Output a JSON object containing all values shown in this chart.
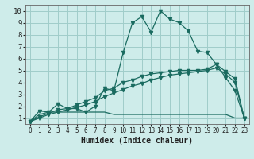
{
  "xlabel": "Humidex (Indice chaleur)",
  "xlim": [
    -0.5,
    23.5
  ],
  "ylim": [
    0.5,
    10.5
  ],
  "xticks": [
    0,
    1,
    2,
    3,
    4,
    5,
    6,
    7,
    8,
    9,
    10,
    11,
    12,
    13,
    14,
    15,
    16,
    17,
    18,
    19,
    20,
    21,
    22,
    23
  ],
  "yticks": [
    1,
    2,
    3,
    4,
    5,
    6,
    7,
    8,
    9,
    10
  ],
  "background_color": "#ceecea",
  "grid_color": "#a0cdc9",
  "line_color": "#1a6b60",
  "curve1_x": [
    0,
    1,
    2,
    3,
    4,
    5,
    6,
    7,
    8,
    9,
    10,
    11,
    12,
    13,
    14,
    15,
    16,
    17,
    18,
    19,
    20,
    21,
    22,
    23
  ],
  "curve1_y": [
    0.7,
    1.6,
    1.5,
    2.2,
    1.8,
    1.8,
    1.5,
    2.0,
    3.5,
    3.3,
    6.5,
    9.0,
    9.5,
    8.2,
    10.0,
    9.3,
    9.0,
    8.3,
    6.6,
    6.5,
    5.5,
    4.4,
    3.3,
    1.0
  ],
  "curve2_x": [
    0,
    1,
    2,
    3,
    4,
    5,
    6,
    7,
    8,
    9,
    10,
    11,
    12,
    13,
    14,
    15,
    16,
    17,
    18,
    19,
    20,
    21,
    22,
    23
  ],
  "curve2_y": [
    0.7,
    1.1,
    1.4,
    1.7,
    1.8,
    2.1,
    2.4,
    2.7,
    3.3,
    3.5,
    4.0,
    4.2,
    4.5,
    4.7,
    4.8,
    4.9,
    5.0,
    5.0,
    5.0,
    5.1,
    5.5,
    4.9,
    4.3,
    1.0
  ],
  "curve3_x": [
    0,
    1,
    2,
    3,
    4,
    5,
    6,
    7,
    8,
    9,
    10,
    11,
    12,
    13,
    14,
    15,
    16,
    17,
    18,
    19,
    20,
    21,
    22,
    23
  ],
  "curve3_y": [
    0.7,
    1.0,
    1.3,
    1.5,
    1.7,
    1.9,
    2.1,
    2.4,
    2.8,
    3.1,
    3.4,
    3.7,
    3.9,
    4.2,
    4.4,
    4.6,
    4.7,
    4.8,
    4.9,
    5.0,
    5.2,
    4.7,
    4.0,
    1.0
  ],
  "curve4_x": [
    0,
    1,
    2,
    3,
    4,
    5,
    6,
    7,
    8,
    9,
    10,
    11,
    12,
    13,
    14,
    15,
    16,
    17,
    18,
    19,
    20,
    21,
    22,
    23
  ],
  "curve4_y": [
    0.7,
    1.3,
    1.5,
    1.5,
    1.5,
    1.5,
    1.5,
    1.5,
    1.5,
    1.3,
    1.3,
    1.3,
    1.3,
    1.3,
    1.3,
    1.3,
    1.3,
    1.3,
    1.3,
    1.3,
    1.3,
    1.3,
    1.0,
    1.0
  ]
}
